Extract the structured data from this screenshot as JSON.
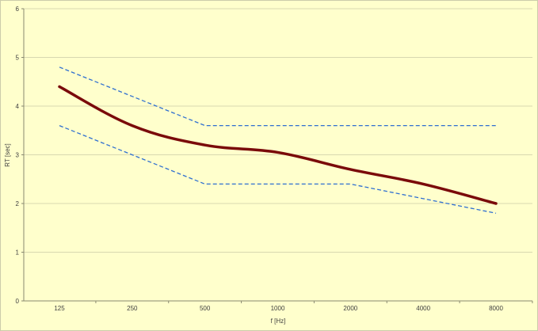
{
  "chart_data": {
    "type": "line",
    "xlabel": "f [Hz]",
    "ylabel": "RT [sec]",
    "categories": [
      "125",
      "250",
      "500",
      "1000",
      "2000",
      "4000",
      "8000"
    ],
    "ylim": [
      0,
      6
    ],
    "yticks": [
      "0",
      "1",
      "2",
      "3",
      "4",
      "5",
      "6"
    ],
    "grid": "horizontal",
    "series": [
      {
        "name": "",
        "style": "solid",
        "color": "#7a0a0a",
        "values": [
          4.4,
          3.6,
          3.2,
          3.05,
          2.7,
          2.4,
          2.0
        ]
      },
      {
        "name": "",
        "style": "dashed",
        "color": "#2f6fd0",
        "values": [
          4.8,
          4.2,
          3.6,
          3.6,
          3.6,
          3.6,
          3.6
        ]
      },
      {
        "name": "",
        "style": "dashed",
        "color": "#2f6fd0",
        "values": [
          3.6,
          3.0,
          2.4,
          2.4,
          2.4,
          2.1,
          1.8
        ]
      }
    ]
  }
}
